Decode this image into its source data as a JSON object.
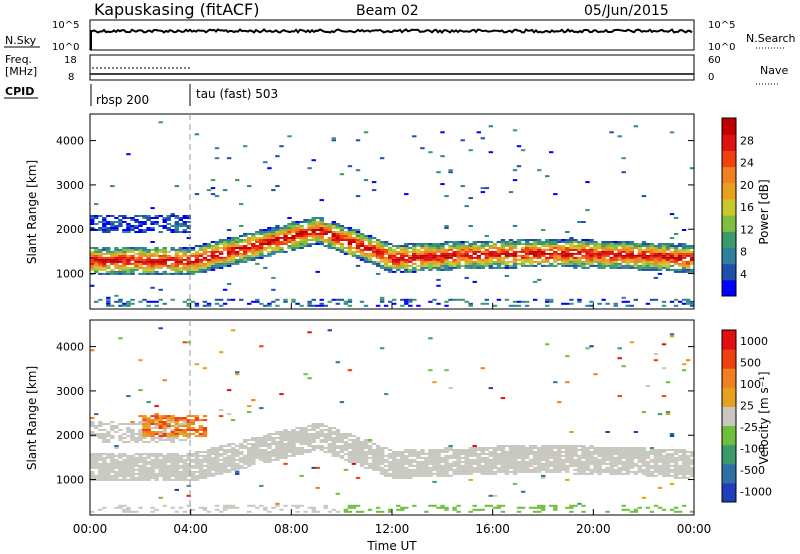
{
  "header": {
    "station": "Kapuskasing (fitACF)",
    "beam": "Beam 02",
    "date": "05/Jun/2015"
  },
  "strips": {
    "nsky_label": "N.Sky",
    "nsky_ticks": [
      "10^5",
      "10^0"
    ],
    "nsearch_label": "N.Search",
    "freq_label": "Freq.",
    "freq_unit": "[MHz]",
    "freq_ticks": [
      "18",
      "8"
    ],
    "nave_label": "Nave",
    "nave_ticks": [
      "60",
      "0"
    ],
    "cpid_label": "CPID",
    "cpid_modes": [
      "rbsp 200",
      "tau (fast) 503"
    ]
  },
  "colors": {
    "power": [
      "#0000ff",
      "#1f4fa8",
      "#2f7f9f",
      "#3a9a6a",
      "#7fbf3f",
      "#c8c82a",
      "#e8a020",
      "#f08020",
      "#f04010",
      "#e01010",
      "#c00000"
    ],
    "velocity": [
      "#e01010",
      "#f04010",
      "#f08020",
      "#e8a020",
      "#c8c8c0",
      "#6fbf3f",
      "#3a9a6a",
      "#2f6fa8",
      "#1f3fb8"
    ]
  },
  "chart_data": [
    {
      "type": "heatmap",
      "name": "power",
      "ylabel": "Slant Range [km]",
      "yticks": [
        1000,
        2000,
        3000,
        4000
      ],
      "ylim": [
        200,
        4600
      ],
      "xlim": [
        0,
        24
      ],
      "x_tick_hours": [
        0,
        4,
        8,
        12,
        16,
        20,
        24
      ],
      "colorbar_label": "Power [dB]",
      "colorbar_ticks": [
        "4",
        "8",
        "12",
        "16",
        "20",
        "24",
        "28"
      ],
      "colorbar_range": [
        0,
        30
      ]
    },
    {
      "type": "heatmap",
      "name": "velocity",
      "ylabel": "Slant Range [km]",
      "yticks": [
        1000,
        2000,
        3000,
        4000
      ],
      "ylim": [
        200,
        4600
      ],
      "xlim": [
        0,
        24
      ],
      "x_tick_hours": [
        0,
        4,
        8,
        12,
        16,
        20,
        24
      ],
      "colorbar_label": "Velocity [m s⁻¹]",
      "colorbar_ticks": [
        "1000",
        "500",
        "100",
        "25",
        "-25",
        "-100",
        "-500",
        "-1000"
      ]
    }
  ],
  "xaxis": {
    "tick_labels": [
      "00:00",
      "04:00",
      "08:00",
      "12:00",
      "16:00",
      "20:00",
      "00:00"
    ],
    "label": "Time UT"
  }
}
